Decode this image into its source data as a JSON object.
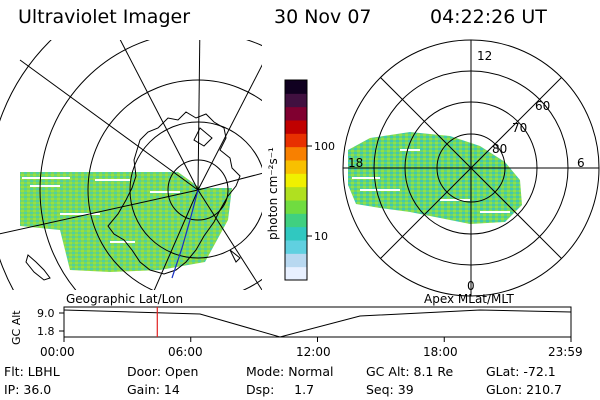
{
  "header": {
    "instrument": "Ultraviolet Imager",
    "date": "30 Nov 07",
    "time": "04:22:26 UT"
  },
  "left_map": {
    "label": "Geographic Lat/Lon"
  },
  "right_map": {
    "label": "Apex MLat/MLT",
    "lat_labels": [
      "60",
      "70",
      "80"
    ],
    "mlt_labels": [
      "12",
      "18",
      "6",
      "0"
    ]
  },
  "colorbar": {
    "unit_label": "photon cm⁻²s⁻¹",
    "ticks": [
      "100",
      "10"
    ],
    "colors": [
      "#e8f0ff",
      "#b8d8f0",
      "#60d0e0",
      "#30c8c0",
      "#40d080",
      "#70dc40",
      "#b0e020",
      "#f0f000",
      "#f8c000",
      "#f88000",
      "#e83000",
      "#c00000",
      "#800030",
      "#401040",
      "#100020"
    ]
  },
  "timeline": {
    "axis_label": "GC Alt",
    "y_ticks": [
      "9.0",
      "1.8"
    ],
    "x_ticks": [
      "00:00",
      "06:00",
      "12:00",
      "18:00",
      "23:59"
    ],
    "current_time_fraction": 0.184
  },
  "status": {
    "flt": "Flt: LBHL",
    "ip": "IP: 36.0",
    "door": "Door: Open",
    "gain": "Gain: 14",
    "mode": "Mode: Normal",
    "dsp": "Dsp:     1.7",
    "gc_alt": "GC Alt: 8.1 Re",
    "seq": "Seq: 39",
    "glat": "GLat: -72.1",
    "glon": "GLon: 210.7"
  }
}
